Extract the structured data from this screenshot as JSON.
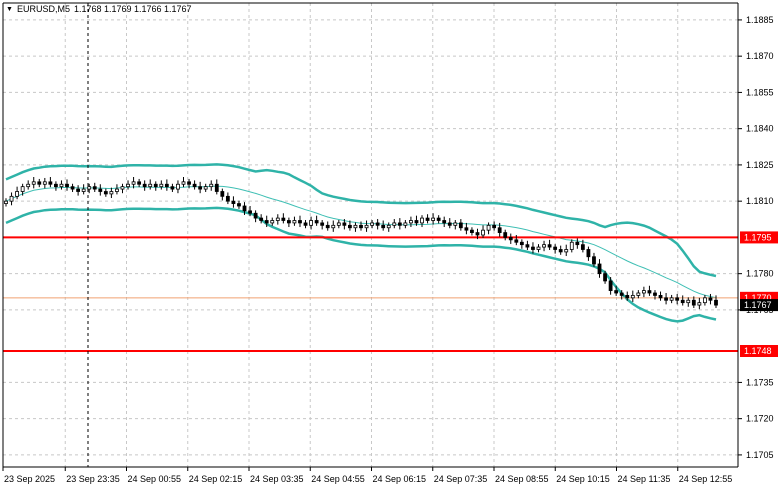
{
  "header": {
    "dropdown_icon": "triangle-down-icon",
    "symbol": "EURUSD,M5",
    "ohlc": "1.1768 1.1769 1.1766 1.1767"
  },
  "colors": {
    "candles": "#000000",
    "bollinger": "#2fb3a8",
    "moving_average": "#3fbfb4",
    "support_resistance": "#ff0000",
    "bid_line": "#f0a070",
    "grid": "#c8c8c8",
    "price_label_bg": "#ff0000",
    "current_price_bg": "#000000"
  },
  "chart_data": {
    "type": "candlestick",
    "symbol": "EURUSD",
    "timeframe": "M5",
    "ylim": [
      1.17,
      1.1892
    ],
    "y_ticks": [
      1.1885,
      1.187,
      1.1855,
      1.184,
      1.1825,
      1.181,
      1.178,
      1.1765,
      1.1735,
      1.172,
      1.1705
    ],
    "x_ticks": [
      "23 Sep 2025",
      "23 Sep 23:35",
      "24 Sep 00:55",
      "24 Sep 02:15",
      "24 Sep 03:35",
      "24 Sep 04:55",
      "24 Sep 06:15",
      "24 Sep 07:35",
      "24 Sep 08:55",
      "24 Sep 10:15",
      "24 Sep 11:35",
      "24 Sep 12:55"
    ],
    "horizontal_levels": [
      {
        "label": "1.1795",
        "price": 1.1795
      },
      {
        "label": "1.1748",
        "price": 1.1748
      }
    ],
    "bid_level": {
      "label": "1.1770",
      "price": 1.177
    },
    "current_price": {
      "label": "1.1767",
      "price": 1.1767
    },
    "closes": [
      1.181,
      1.1812,
      1.1814,
      1.1816,
      1.1817,
      1.1818,
      1.1817,
      1.1818,
      1.1817,
      1.1816,
      1.1817,
      1.1816,
      1.1815,
      1.1814,
      1.1815,
      1.1816,
      1.1815,
      1.1814,
      1.1813,
      1.1814,
      1.1815,
      1.1816,
      1.1817,
      1.1818,
      1.1817,
      1.1816,
      1.1817,
      1.1816,
      1.1817,
      1.1816,
      1.1815,
      1.1817,
      1.1818,
      1.1817,
      1.1816,
      1.1815,
      1.1816,
      1.1817,
      1.1814,
      1.1812,
      1.181,
      1.1809,
      1.1808,
      1.1806,
      1.1805,
      1.1803,
      1.1802,
      1.1801,
      1.1802,
      1.1803,
      1.1802,
      1.1801,
      1.1802,
      1.1801,
      1.18,
      1.1802,
      1.1801,
      1.18,
      1.1799,
      1.18,
      1.1801,
      1.18,
      1.1799,
      1.18,
      1.1799,
      1.18,
      1.1801,
      1.18,
      1.1799,
      1.18,
      1.1801,
      1.18,
      1.1801,
      1.1802,
      1.1801,
      1.1803,
      1.1802,
      1.1803,
      1.1802,
      1.1801,
      1.18,
      1.1801,
      1.1799,
      1.1798,
      1.1797,
      1.1796,
      1.1798,
      1.18,
      1.1799,
      1.1797,
      1.1795,
      1.1794,
      1.1793,
      1.1792,
      1.1791,
      1.179,
      1.1791,
      1.1792,
      1.1791,
      1.179,
      1.1789,
      1.179,
      1.1793,
      1.1792,
      1.179,
      1.1787,
      1.1784,
      1.178,
      1.1777,
      1.1773,
      1.1772,
      1.1771,
      1.177,
      1.1771,
      1.1772,
      1.1773,
      1.1772,
      1.1771,
      1.177,
      1.1769,
      1.177,
      1.1769,
      1.1768,
      1.1769,
      1.1767,
      1.1768,
      1.177,
      1.1769,
      1.1767
    ]
  }
}
